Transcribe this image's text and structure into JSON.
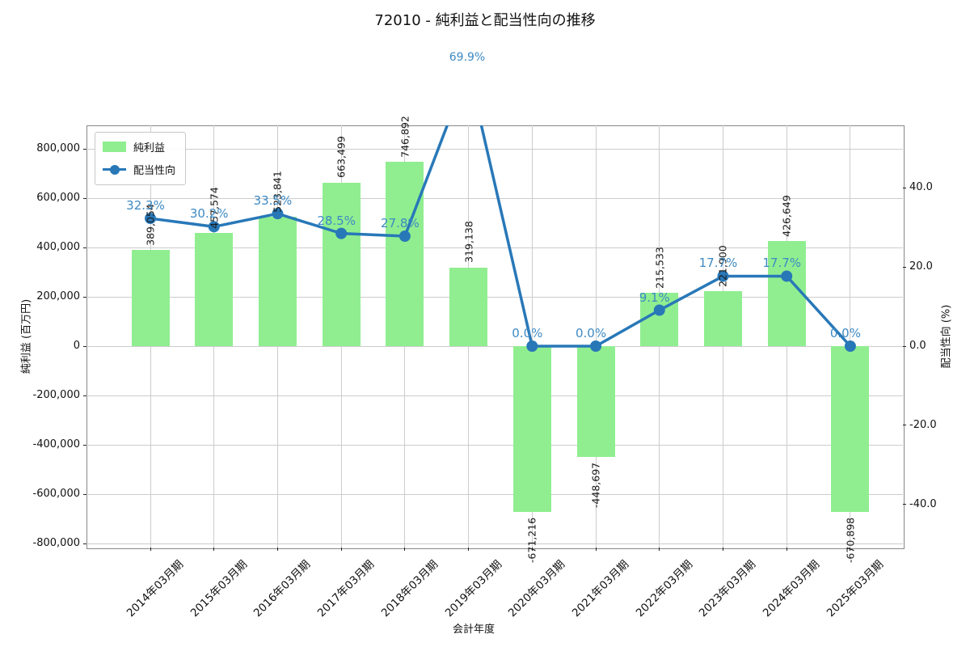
{
  "title": "72010 - 純利益と配当性向の推移",
  "annotation": {
    "text": "69.9%",
    "category": "2019年03月期",
    "note": "clipped line value shown above plot"
  },
  "legend": [
    {
      "label": "純利益",
      "swatch": "green-bar-swatch"
    },
    {
      "label": "配当性向",
      "swatch": "blue-line-dot-swatch"
    }
  ],
  "axes": {
    "x_title": "会計年度",
    "y_left_title": "純利益 (百万円)",
    "y_right_title": "配当性向 (%)",
    "y_left_ticks": [
      {
        "v": 800000,
        "label": "800,000"
      },
      {
        "v": 600000,
        "label": "600,000"
      },
      {
        "v": 400000,
        "label": "400,000"
      },
      {
        "v": 200000,
        "label": "200,000"
      },
      {
        "v": 0,
        "label": "0"
      },
      {
        "v": -200000,
        "label": "-200,000"
      },
      {
        "v": -400000,
        "label": "-400,000"
      },
      {
        "v": -600000,
        "label": "-600,000"
      },
      {
        "v": -800000,
        "label": "-800,000"
      }
    ],
    "y_right_ticks": [
      {
        "v": 40,
        "label": "40.0"
      },
      {
        "v": 20,
        "label": "20.0"
      },
      {
        "v": 0,
        "label": "0.0"
      },
      {
        "v": -20,
        "label": "-20.0"
      },
      {
        "v": -40,
        "label": "-40.0"
      }
    ]
  },
  "chart_data": {
    "type": "bar+line",
    "categories": [
      "2014年03月期",
      "2015年03月期",
      "2016年03月期",
      "2017年03月期",
      "2018年03月期",
      "2019年03月期",
      "2020年03月期",
      "2021年03月期",
      "2022年03月期",
      "2023年03月期",
      "2024年03月期",
      "2025年03月期"
    ],
    "series": [
      {
        "name": "純利益",
        "type": "bar",
        "axis": "left",
        "unit": "百万円",
        "color": "#90ee90",
        "values": [
          389054,
          457574,
          523841,
          663499,
          746892,
          319138,
          -671216,
          -448697,
          215533,
          221900,
          426649,
          -670898
        ],
        "labels": [
          "389,054",
          "457,574",
          "523,841",
          "663,499",
          "746,892",
          "319,138",
          "-671,216",
          "-448,697",
          "215,533",
          "221,900",
          "426,649",
          "-670,898"
        ]
      },
      {
        "name": "配当性向",
        "type": "line",
        "axis": "right",
        "unit": "%",
        "color": "#2878b8",
        "values": [
          32.3,
          30.2,
          33.5,
          28.5,
          27.8,
          69.9,
          0.0,
          0.0,
          9.1,
          17.7,
          17.7,
          0.0
        ],
        "labels": [
          "32.3%",
          "30.2%",
          "33.5%",
          "28.5%",
          "27.8%",
          "69.9%",
          "0.0%",
          "0.0%",
          "9.1%",
          "17.7%",
          "17.7%",
          "0.0%"
        ]
      }
    ],
    "y_left_range": [
      -816000,
      895000
    ],
    "y_right_range": [
      -50.9,
      55.8
    ],
    "grid": true,
    "legend_position": "upper-left"
  },
  "colors": {
    "bar": "#90ee90",
    "line": "#2878b8",
    "percent_label": "#3d8ac4",
    "grid": "#cccccc",
    "frame": "#888888",
    "text": "#111111",
    "background": "#ffffff"
  }
}
